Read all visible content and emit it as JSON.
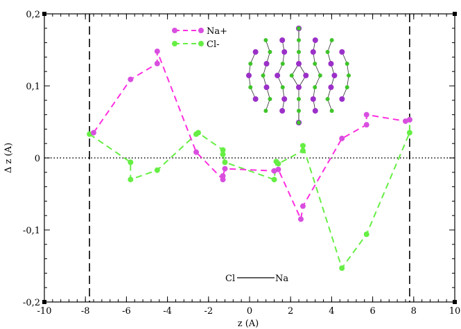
{
  "chart_data": {
    "type": "line",
    "xlabel": "z (A)",
    "ylabel": "Δ z (A)",
    "xlim": [
      -10,
      10
    ],
    "ylim": [
      -0.2,
      0.2
    ],
    "x_ticks": [
      -10,
      -8,
      -6,
      -4,
      -2,
      0,
      2,
      4,
      6,
      8,
      10
    ],
    "x_tick_labels": [
      "-10",
      "-8",
      "-6",
      "-4",
      "-2",
      "0",
      "2",
      "4",
      "6",
      "8",
      "10"
    ],
    "y_ticks": [
      -0.2,
      -0.1,
      0,
      0.1,
      0.2
    ],
    "y_tick_labels": [
      "-0,2",
      "-0,1",
      "0",
      "0,1",
      "0,2"
    ],
    "zero_line": "dotted",
    "vertical_lines": [
      -7.8,
      7.8
    ],
    "legend_position": "top-center",
    "series": [
      {
        "name": "Na+",
        "color": "#ff2ee0",
        "marker_color": "#d84fe0",
        "x": [
          -7.6,
          -5.8,
          -4.5,
          -4.5,
          -2.6,
          -1.3,
          -1.3,
          -1.2,
          1.2,
          1.4,
          2.5,
          2.6,
          4.5,
          5.7,
          5.7,
          7.6,
          7.8
        ],
        "y": [
          0.035,
          0.109,
          0.131,
          0.148,
          0.008,
          -0.03,
          -0.025,
          -0.015,
          -0.018,
          -0.016,
          -0.085,
          -0.067,
          0.027,
          0.046,
          0.06,
          0.051,
          0.053
        ]
      },
      {
        "name": "Cl-",
        "color": "#66ee44",
        "marker_color": "#66ee44",
        "x": [
          -7.8,
          -5.8,
          -5.8,
          -4.5,
          -2.6,
          -2.5,
          -1.3,
          -1.3,
          -1.2,
          1.2,
          1.3,
          1.4,
          2.6,
          2.6,
          4.5,
          5.7,
          7.8,
          7.8
        ],
        "y": [
          0.033,
          -0.006,
          -0.03,
          -0.017,
          0.033,
          0.035,
          0.011,
          0.005,
          -0.006,
          -0.03,
          -0.005,
          -0.008,
          0.01,
          0.017,
          -0.153,
          -0.106,
          0.035,
          0.053
        ]
      }
    ],
    "annotation": {
      "left_label": "Cl",
      "right_label": "Na"
    }
  },
  "inset": {
    "description_icon": "cluster-molecule-icon"
  }
}
